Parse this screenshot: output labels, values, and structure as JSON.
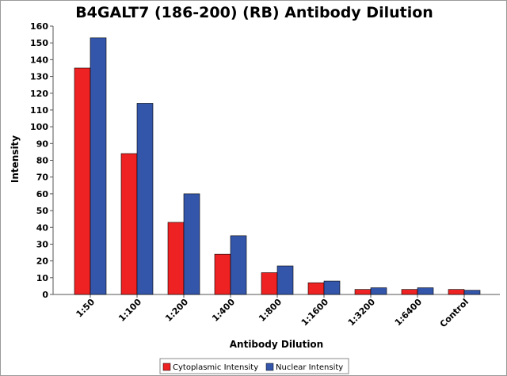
{
  "chart_data": {
    "type": "bar",
    "title": "B4GALT7 (186-200) (RB) Antibody Dilution",
    "xlabel": "Antibody Dilution",
    "ylabel": "Intensity",
    "ylim": [
      0,
      160
    ],
    "yticks": [
      0,
      10,
      20,
      30,
      40,
      50,
      60,
      70,
      80,
      90,
      100,
      110,
      120,
      130,
      140,
      150,
      160
    ],
    "categories": [
      "1:50",
      "1:100",
      "1:200",
      "1:400",
      "1:800",
      "1:1600",
      "1:3200",
      "1:6400",
      "Control"
    ],
    "series": [
      {
        "name": "Cytoplasmic Intensity",
        "color": "#ee2222",
        "values": [
          135,
          84,
          43,
          24,
          13,
          7,
          3,
          3,
          3
        ]
      },
      {
        "name": "Nuclear Intensity",
        "color": "#3355aa",
        "values": [
          153,
          114,
          60,
          35,
          17,
          8,
          4,
          4,
          2.5
        ]
      }
    ],
    "grid": false,
    "legend_position": "bottom"
  }
}
